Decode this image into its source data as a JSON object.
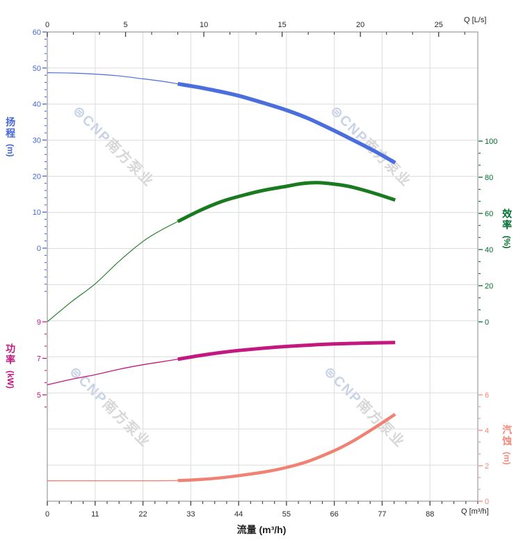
{
  "watermark": {
    "logo": "⊜",
    "brand": "CNP",
    "company": "南方泵业"
  },
  "colors": {
    "head": "#4a6edb",
    "head_text": "#4466d4",
    "efficiency": "#1a7a1f",
    "efficiency_text": "#006e2d",
    "power": "#c2187f",
    "power_text": "#c2187f",
    "npsh": "#f austin08273",
    "npsh_text": "#f5897c",
    "grid": "#dcdcdc",
    "border": "#9a9a9a",
    "xtick": "#3d3d3d",
    "xlabel": "#2b2b2b"
  },
  "chart_data": {
    "type": "line",
    "x_axes": {
      "top": {
        "unit_label": "Q [L/s]",
        "max": 27.5,
        "ticks": [
          0,
          5,
          10,
          15,
          20,
          25
        ],
        "minor_step": 1.6667
      },
      "bottom": {
        "unit_label": "Q [m³/h]",
        "axis_title": "流量 (m³/h)",
        "max": 99,
        "ticks": [
          0,
          11,
          22,
          33,
          44,
          55,
          66,
          77,
          88
        ],
        "minor_step": 2.75
      }
    },
    "y_axes": [
      {
        "id": "head",
        "title": "扬程",
        "unit": "(m)",
        "side": "left",
        "color": "#4466d4",
        "range": [
          0,
          60
        ],
        "ticks": [
          60,
          50,
          40,
          30,
          20,
          10,
          0
        ],
        "minor_step": 2,
        "minor_range": [
          -12,
          60
        ]
      },
      {
        "id": "efficiency",
        "title": "效率",
        "unit": "(%)",
        "side": "right",
        "color": "#006e2d",
        "range": [
          0,
          100
        ],
        "ticks": [
          100,
          80,
          60,
          40,
          20,
          0
        ],
        "minor_step": 6.6667,
        "minor_range": [
          0,
          100
        ]
      },
      {
        "id": "power",
        "title": "功率",
        "unit": "(kW)",
        "side": "left",
        "color": "#c2187f",
        "range": [
          5,
          9
        ],
        "ticks": [
          9,
          7,
          5
        ],
        "minor_step": 0.6667,
        "minor_range": [
          4.3333,
          9.6667
        ]
      },
      {
        "id": "npsh",
        "title": "汽蚀",
        "unit": "(m)",
        "side": "right",
        "color": "#f5897c",
        "range": [
          0,
          6
        ],
        "ticks": [
          6,
          4,
          2,
          0
        ],
        "minor_step": 0.6667,
        "minor_range": [
          0,
          6.6667
        ]
      }
    ],
    "series": [
      {
        "id": "head",
        "label": "扬程",
        "axis": "head",
        "color": "#4a6edb",
        "split_q": 30,
        "points": [
          [
            0,
            48.7
          ],
          [
            5.5,
            48.6
          ],
          [
            11,
            48.3
          ],
          [
            16.5,
            47.8
          ],
          [
            22,
            47.0
          ],
          [
            26,
            46.4
          ],
          [
            30,
            45.6
          ],
          [
            35,
            44.6
          ],
          [
            40,
            43.4
          ],
          [
            44,
            42.3
          ],
          [
            50,
            40.2
          ],
          [
            55,
            38.3
          ],
          [
            60,
            36.0
          ],
          [
            66,
            32.6
          ],
          [
            70,
            30.2
          ],
          [
            75,
            27.1
          ],
          [
            80,
            23.7
          ]
        ]
      },
      {
        "id": "efficiency",
        "label": "效率",
        "axis": "efficiency",
        "color": "#1a7a1f",
        "split_q": 30,
        "points": [
          [
            0,
            0
          ],
          [
            5.5,
            11
          ],
          [
            11,
            21
          ],
          [
            16.5,
            33.5
          ],
          [
            22,
            44.5
          ],
          [
            26,
            50.5
          ],
          [
            30,
            55.5
          ],
          [
            35,
            61.5
          ],
          [
            40,
            66.5
          ],
          [
            45,
            70
          ],
          [
            50,
            72.9
          ],
          [
            55,
            75
          ],
          [
            58.5,
            76.5
          ],
          [
            62,
            77
          ],
          [
            66,
            76.2
          ],
          [
            70,
            74.6
          ],
          [
            75,
            71.3
          ],
          [
            80,
            67.4
          ]
        ]
      },
      {
        "id": "power",
        "label": "功率",
        "axis": "power",
        "color": "#c2187f",
        "split_q": 30,
        "points": [
          [
            0,
            5.55
          ],
          [
            5.5,
            5.85
          ],
          [
            11,
            6.1
          ],
          [
            16.5,
            6.4
          ],
          [
            22,
            6.65
          ],
          [
            26,
            6.8
          ],
          [
            30,
            6.95
          ],
          [
            35,
            7.15
          ],
          [
            40,
            7.32
          ],
          [
            44,
            7.43
          ],
          [
            50,
            7.56
          ],
          [
            55,
            7.65
          ],
          [
            60,
            7.72
          ],
          [
            66,
            7.79
          ],
          [
            72,
            7.83
          ],
          [
            80,
            7.87
          ]
        ]
      },
      {
        "id": "npsh",
        "label": "汽蚀",
        "axis": "npsh",
        "color": "#f08273",
        "split_q": 30,
        "points": [
          [
            0,
            1.15
          ],
          [
            8,
            1.15
          ],
          [
            16,
            1.15
          ],
          [
            24,
            1.15
          ],
          [
            30,
            1.16
          ],
          [
            35,
            1.22
          ],
          [
            40,
            1.32
          ],
          [
            44,
            1.44
          ],
          [
            50,
            1.65
          ],
          [
            55,
            1.9
          ],
          [
            60,
            2.25
          ],
          [
            66,
            2.85
          ],
          [
            70,
            3.35
          ],
          [
            75,
            4.1
          ],
          [
            80,
            4.9
          ]
        ]
      }
    ]
  }
}
